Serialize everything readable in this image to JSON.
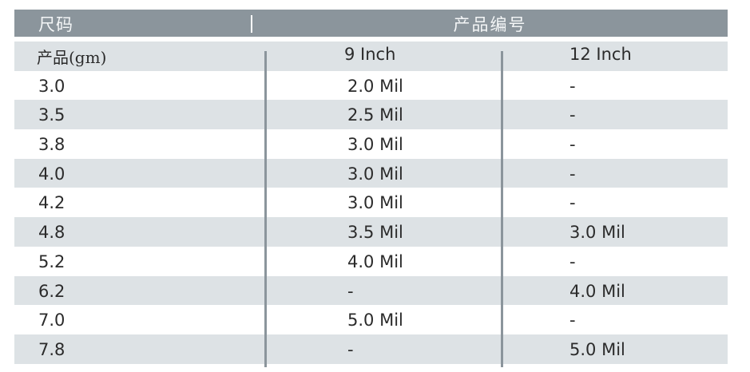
{
  "header": {
    "size_label": "尺码",
    "code_label": "产品编号"
  },
  "subheader": {
    "col1": "产品(gm)",
    "col2": "9 Inch",
    "col3": "12 Inch"
  },
  "rows": [
    {
      "size": "3.0",
      "nine": "2.0 Mil",
      "twelve": "-"
    },
    {
      "size": "3.5",
      "nine": "2.5 Mil",
      "twelve": "-"
    },
    {
      "size": "3.8",
      "nine": "3.0 Mil",
      "twelve": "-"
    },
    {
      "size": "4.0",
      "nine": "3.0 Mil",
      "twelve": "-"
    },
    {
      "size": "4.2",
      "nine": "3.0 Mil",
      "twelve": "-"
    },
    {
      "size": "4.8",
      "nine": "3.5 Mil",
      "twelve": "3.0 Mil"
    },
    {
      "size": "5.2",
      "nine": "4.0 Mil",
      "twelve": "-"
    },
    {
      "size": "6.2",
      "nine": "-",
      "twelve": "4.0 Mil"
    },
    {
      "size": "7.0",
      "nine": "5.0 Mil",
      "twelve": "-"
    },
    {
      "size": "7.8",
      "nine": "-",
      "twelve": "5.0 Mil"
    }
  ],
  "colors": {
    "header_bg": "#8b959c",
    "shade_bg": "#dde2e5",
    "divider": "#8b959c"
  }
}
